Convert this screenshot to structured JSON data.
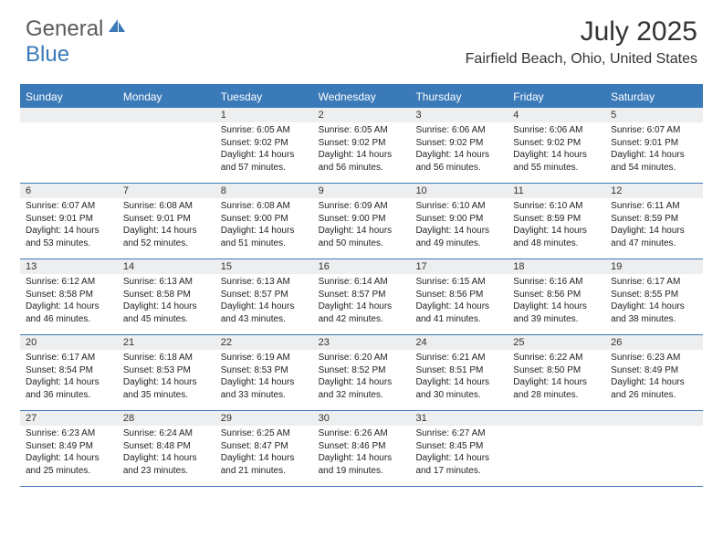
{
  "brand": {
    "part1": "General",
    "part2": "Blue",
    "accent": "#3a7ab8",
    "gray": "#5a5a5a"
  },
  "title": {
    "month": "July 2025",
    "location": "Fairfield Beach, Ohio, United States"
  },
  "colors": {
    "header_bg": "#3a7ab8",
    "header_text": "#ffffff",
    "numbar_bg": "#eceef0",
    "row_border": "#3a7ab8",
    "text": "#222222",
    "page_bg": "#ffffff"
  },
  "fonts": {
    "base_family": "Arial",
    "title_size_pt": 23,
    "location_size_pt": 12,
    "dayhead_size_pt": 9,
    "body_size_pt": 7.5
  },
  "day_names": [
    "Sunday",
    "Monday",
    "Tuesday",
    "Wednesday",
    "Thursday",
    "Friday",
    "Saturday"
  ],
  "weeks": [
    [
      null,
      null,
      {
        "n": "1",
        "sr": "6:05 AM",
        "ss": "9:02 PM",
        "dh": 14,
        "dm": 57
      },
      {
        "n": "2",
        "sr": "6:05 AM",
        "ss": "9:02 PM",
        "dh": 14,
        "dm": 56
      },
      {
        "n": "3",
        "sr": "6:06 AM",
        "ss": "9:02 PM",
        "dh": 14,
        "dm": 56
      },
      {
        "n": "4",
        "sr": "6:06 AM",
        "ss": "9:02 PM",
        "dh": 14,
        "dm": 55
      },
      {
        "n": "5",
        "sr": "6:07 AM",
        "ss": "9:01 PM",
        "dh": 14,
        "dm": 54
      }
    ],
    [
      {
        "n": "6",
        "sr": "6:07 AM",
        "ss": "9:01 PM",
        "dh": 14,
        "dm": 53
      },
      {
        "n": "7",
        "sr": "6:08 AM",
        "ss": "9:01 PM",
        "dh": 14,
        "dm": 52
      },
      {
        "n": "8",
        "sr": "6:08 AM",
        "ss": "9:00 PM",
        "dh": 14,
        "dm": 51
      },
      {
        "n": "9",
        "sr": "6:09 AM",
        "ss": "9:00 PM",
        "dh": 14,
        "dm": 50
      },
      {
        "n": "10",
        "sr": "6:10 AM",
        "ss": "9:00 PM",
        "dh": 14,
        "dm": 49
      },
      {
        "n": "11",
        "sr": "6:10 AM",
        "ss": "8:59 PM",
        "dh": 14,
        "dm": 48
      },
      {
        "n": "12",
        "sr": "6:11 AM",
        "ss": "8:59 PM",
        "dh": 14,
        "dm": 47
      }
    ],
    [
      {
        "n": "13",
        "sr": "6:12 AM",
        "ss": "8:58 PM",
        "dh": 14,
        "dm": 46
      },
      {
        "n": "14",
        "sr": "6:13 AM",
        "ss": "8:58 PM",
        "dh": 14,
        "dm": 45
      },
      {
        "n": "15",
        "sr": "6:13 AM",
        "ss": "8:57 PM",
        "dh": 14,
        "dm": 43
      },
      {
        "n": "16",
        "sr": "6:14 AM",
        "ss": "8:57 PM",
        "dh": 14,
        "dm": 42
      },
      {
        "n": "17",
        "sr": "6:15 AM",
        "ss": "8:56 PM",
        "dh": 14,
        "dm": 41
      },
      {
        "n": "18",
        "sr": "6:16 AM",
        "ss": "8:56 PM",
        "dh": 14,
        "dm": 39
      },
      {
        "n": "19",
        "sr": "6:17 AM",
        "ss": "8:55 PM",
        "dh": 14,
        "dm": 38
      }
    ],
    [
      {
        "n": "20",
        "sr": "6:17 AM",
        "ss": "8:54 PM",
        "dh": 14,
        "dm": 36
      },
      {
        "n": "21",
        "sr": "6:18 AM",
        "ss": "8:53 PM",
        "dh": 14,
        "dm": 35
      },
      {
        "n": "22",
        "sr": "6:19 AM",
        "ss": "8:53 PM",
        "dh": 14,
        "dm": 33
      },
      {
        "n": "23",
        "sr": "6:20 AM",
        "ss": "8:52 PM",
        "dh": 14,
        "dm": 32
      },
      {
        "n": "24",
        "sr": "6:21 AM",
        "ss": "8:51 PM",
        "dh": 14,
        "dm": 30
      },
      {
        "n": "25",
        "sr": "6:22 AM",
        "ss": "8:50 PM",
        "dh": 14,
        "dm": 28
      },
      {
        "n": "26",
        "sr": "6:23 AM",
        "ss": "8:49 PM",
        "dh": 14,
        "dm": 26
      }
    ],
    [
      {
        "n": "27",
        "sr": "6:23 AM",
        "ss": "8:49 PM",
        "dh": 14,
        "dm": 25
      },
      {
        "n": "28",
        "sr": "6:24 AM",
        "ss": "8:48 PM",
        "dh": 14,
        "dm": 23
      },
      {
        "n": "29",
        "sr": "6:25 AM",
        "ss": "8:47 PM",
        "dh": 14,
        "dm": 21
      },
      {
        "n": "30",
        "sr": "6:26 AM",
        "ss": "8:46 PM",
        "dh": 14,
        "dm": 19
      },
      {
        "n": "31",
        "sr": "6:27 AM",
        "ss": "8:45 PM",
        "dh": 14,
        "dm": 17
      },
      null,
      null
    ]
  ],
  "labels": {
    "sunrise": "Sunrise:",
    "sunset": "Sunset:",
    "daylight": "Daylight:",
    "hours": "hours",
    "and": "and",
    "minutes": "minutes."
  }
}
